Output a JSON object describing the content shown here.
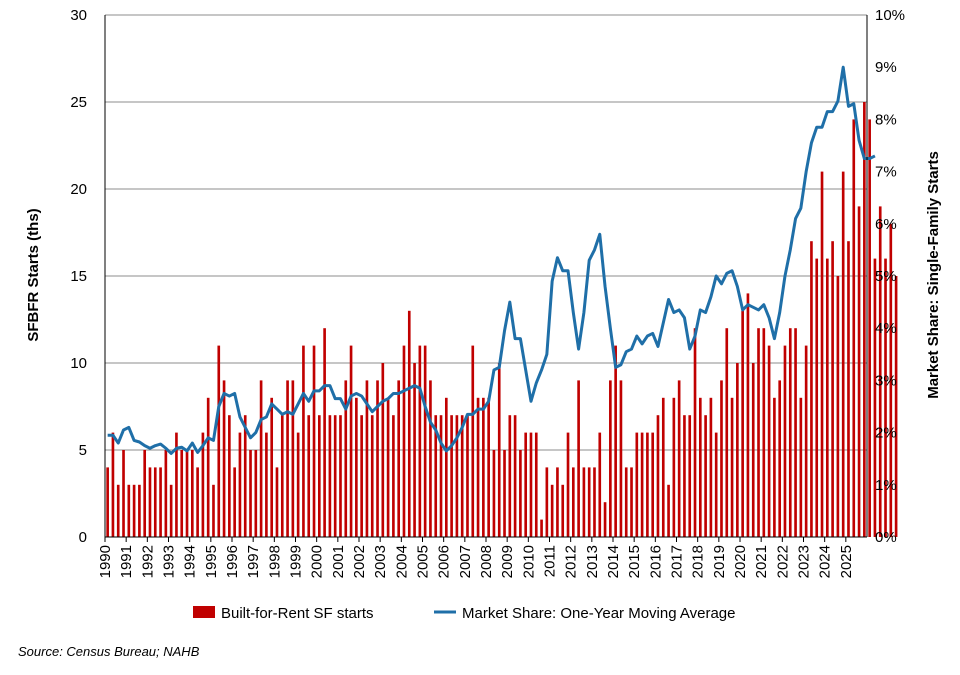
{
  "chart_data": {
    "type": "bar+line",
    "x_start_year": 1990,
    "x_end_year": 2025,
    "quarters_per_year": 4,
    "years": [
      "1990",
      "1991",
      "1992",
      "1993",
      "1994",
      "1995",
      "1996",
      "1997",
      "1998",
      "1999",
      "2000",
      "2001",
      "2002",
      "2003",
      "2004",
      "2005",
      "2006",
      "2007",
      "2008",
      "2009",
      "2010",
      "2011",
      "2012",
      "2013",
      "2014",
      "2015",
      "2016",
      "2017",
      "2018",
      "2019",
      "2020",
      "2021",
      "2022",
      "2023",
      "2024",
      "2025"
    ],
    "ylabel": "SFBFR Starts (ths)",
    "y2label": "Market Share: Single-Family Starts",
    "ylim": [
      0,
      30
    ],
    "y_ticks": [
      "0",
      "5",
      "10",
      "15",
      "20",
      "25",
      "30"
    ],
    "y2lim": [
      0,
      10
    ],
    "y2_ticks": [
      "0%",
      "1%",
      "2%",
      "3%",
      "4%",
      "5%",
      "6%",
      "7%",
      "8%",
      "9%",
      "10%"
    ],
    "grid": "horizontal",
    "legend_position": "bottom",
    "series": [
      {
        "name": "Built-for-Rent SF starts",
        "type": "bar",
        "color": "#c00000",
        "values": [
          4,
          6,
          3,
          5,
          3,
          3,
          3,
          5,
          4,
          4,
          4,
          5,
          3,
          6,
          5,
          5,
          5,
          4,
          6,
          8,
          3,
          11,
          9,
          7,
          4,
          6,
          7,
          5,
          5,
          9,
          6,
          8,
          4,
          7,
          9,
          9,
          6,
          11,
          7,
          11,
          7,
          12,
          7,
          7,
          7,
          9,
          11,
          8,
          7,
          9,
          7,
          9,
          10,
          8,
          7,
          9,
          11,
          13,
          10,
          11,
          11,
          9,
          7,
          7,
          8,
          7,
          7,
          7,
          7,
          11,
          8,
          8,
          8,
          5,
          10,
          5,
          7,
          7,
          5,
          6,
          6,
          6,
          1,
          4,
          3,
          4,
          3,
          6,
          4,
          9,
          4,
          4,
          4,
          6,
          2,
          9,
          11,
          9,
          4,
          4,
          6,
          6,
          6,
          6,
          7,
          8,
          3,
          8,
          9,
          7,
          7,
          12,
          8,
          7,
          8,
          6,
          9,
          12,
          8,
          10,
          13,
          14,
          10,
          12,
          12,
          11,
          8,
          9,
          11,
          12,
          12,
          8,
          11,
          17,
          16,
          21,
          16,
          17,
          15,
          21,
          17,
          24,
          19,
          25,
          24,
          16,
          19,
          16,
          18,
          15
        ]
      },
      {
        "name": "Market Share: One-Year Moving Average",
        "type": "line",
        "color": "#1f6fa8",
        "values": [
          1.95,
          1.95,
          1.8,
          2.05,
          2.1,
          1.85,
          1.82,
          1.75,
          1.7,
          1.75,
          1.78,
          1.7,
          1.6,
          1.7,
          1.72,
          1.65,
          1.8,
          1.62,
          1.75,
          1.9,
          1.85,
          2.5,
          2.75,
          2.7,
          2.75,
          2.3,
          2.1,
          1.9,
          2.0,
          2.25,
          2.3,
          2.55,
          2.45,
          2.35,
          2.4,
          2.35,
          2.55,
          2.75,
          2.6,
          2.8,
          2.8,
          2.9,
          2.9,
          2.65,
          2.65,
          2.45,
          2.7,
          2.75,
          2.7,
          2.55,
          2.4,
          2.5,
          2.6,
          2.65,
          2.75,
          2.75,
          2.8,
          2.85,
          2.9,
          2.85,
          2.5,
          2.2,
          2.05,
          1.8,
          1.65,
          1.75,
          1.9,
          2.1,
          2.35,
          2.35,
          2.45,
          2.45,
          2.6,
          3.2,
          3.25,
          3.95,
          4.5,
          3.8,
          3.8,
          3.2,
          2.6,
          2.95,
          3.2,
          3.5,
          4.9,
          5.35,
          5.1,
          5.1,
          4.3,
          3.6,
          4.3,
          5.3,
          5.5,
          5.8,
          4.8,
          4.0,
          3.25,
          3.3,
          3.55,
          3.6,
          3.85,
          3.7,
          3.85,
          3.9,
          3.65,
          4.1,
          4.55,
          4.3,
          4.35,
          4.2,
          3.6,
          3.85,
          4.35,
          4.3,
          4.6,
          5.0,
          4.85,
          5.05,
          5.1,
          4.8,
          4.35,
          4.45,
          4.4,
          4.35,
          4.45,
          4.2,
          3.8,
          4.3,
          5.0,
          5.5,
          6.1,
          6.3,
          7.0,
          7.55,
          7.85,
          7.85,
          8.15,
          8.15,
          8.35,
          9.0,
          8.25,
          8.3,
          7.6,
          7.25,
          7.25,
          7.3
        ]
      }
    ]
  },
  "source": "Source: Census Bureau; NAHB"
}
